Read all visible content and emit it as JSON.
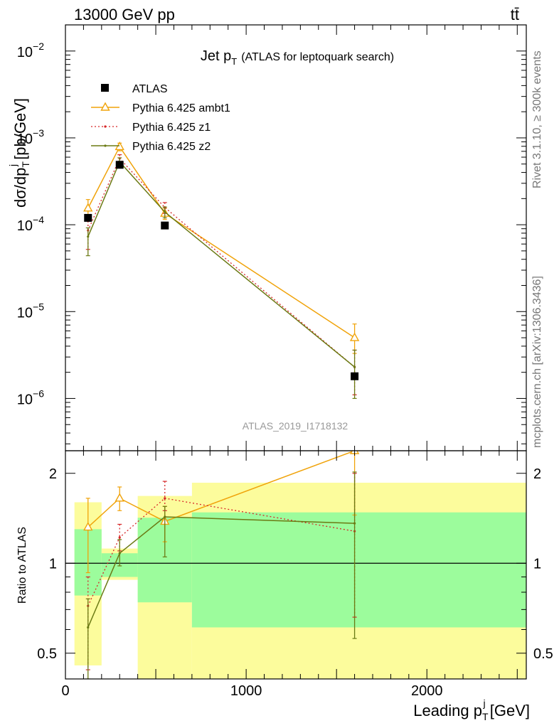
{
  "header": {
    "left": "13000 GeV pp",
    "right": "tt̄"
  },
  "side_labels": {
    "top": "Rivet 3.1.10, ≥ 300k events",
    "bottom": "mcplots.cern.ch [arXiv:1306.3436]"
  },
  "colors": {
    "data": "#000000",
    "ambt1": "#f0a30a",
    "z1": "#d62728",
    "z2": "#6b7a14",
    "band_inner": "#9cfc9c",
    "band_outer": "#fcfc9c",
    "watermark": "#999999"
  },
  "chart_data": [
    {
      "type": "line",
      "title": "Jet p_T (ATLAS for leptoquark search)",
      "title_main": "Jet p",
      "title_sub": "T",
      "title_note": "(ATLAS for leptoquark search)",
      "ylabel": "dσ/dp_T^j [pb/GeV]",
      "ylabel_parts": {
        "a": "dσ/dp",
        "sup": "j",
        "sub": "T",
        "b": " [pb/GeV]"
      },
      "y_scale": "log",
      "ylim": [
        2.5e-07,
        0.02
      ],
      "xlim": [
        0,
        2550
      ],
      "y_ticks": [
        {
          "value": 1e-06,
          "base": "10",
          "exp": "−6"
        },
        {
          "value": 1e-05,
          "base": "10",
          "exp": "−5"
        },
        {
          "value": 0.0001,
          "base": "10",
          "exp": "−4"
        },
        {
          "value": 0.001,
          "base": "10",
          "exp": "−3"
        },
        {
          "value": 0.01,
          "base": "10",
          "exp": "−2"
        }
      ],
      "watermark": "ATLAS_2019_I1718132",
      "legend_position": "top-left",
      "series": [
        {
          "name": "ATLAS",
          "style": "marker",
          "x": [
            125,
            300,
            550,
            1600
          ],
          "y": [
            0.00012,
            0.00049,
            9.8e-05,
            1.8e-06
          ]
        },
        {
          "name": "Pythia 6.425 ambt1",
          "style": "triangle-line",
          "x": [
            125,
            300,
            550,
            1600
          ],
          "y": [
            0.000155,
            0.00079,
            0.000135,
            5e-06
          ],
          "yerr_low": [
            0.000125,
            0.00071,
            0.000115,
            3.3e-06
          ],
          "yerr_high": [
            0.000195,
            0.00087,
            0.000155,
            7.2e-06
          ]
        },
        {
          "name": "Pythia 6.425 z1",
          "style": "dotted-line",
          "x": [
            125,
            300,
            550,
            1600
          ],
          "y": [
            8.6e-05,
            0.00058,
            0.000158,
            2.3e-06
          ],
          "yerr_low": [
            5.2e-05,
            0.00052,
            0.000135,
            1.1e-06
          ],
          "yerr_high": [
            0.00011,
            0.00064,
            0.00018,
            3.6e-06
          ]
        },
        {
          "name": "Pythia 6.425 z2",
          "style": "line",
          "x": [
            125,
            300,
            550,
            1600
          ],
          "y": [
            7.3e-05,
            0.00053,
            0.00014,
            2.3e-06
          ],
          "yerr_low": [
            4.4e-05,
            0.00047,
            0.00012,
            1e-06
          ],
          "yerr_high": [
            9.2e-05,
            0.00059,
            0.00016,
            3.6e-06
          ]
        }
      ]
    },
    {
      "type": "line",
      "ylabel": "Ratio to ATLAS",
      "xlabel": "Leading p_T^j [GeV]",
      "xlabel_parts": {
        "a": "Leading p",
        "sup": "j",
        "sub": "T",
        "b": " [GeV]"
      },
      "y_scale": "log",
      "ylim": [
        0.41,
        2.38
      ],
      "xlim": [
        0,
        2550
      ],
      "x_ticks": [
        0,
        1000,
        2000
      ],
      "y_ticks": [
        0.5,
        1,
        2
      ],
      "y_tick_labels": [
        "0.5",
        "1",
        "2"
      ],
      "bins": [
        {
          "x0": 50,
          "x1": 200,
          "inner": [
            0.78,
            1.3
          ],
          "outer": [
            0.455,
            1.6
          ]
        },
        {
          "x0": 200,
          "x1": 400,
          "inner": [
            0.9,
            1.08
          ],
          "outer": [
            0.88,
            1.12
          ]
        },
        {
          "x0": 400,
          "x1": 700,
          "inner": [
            0.74,
            1.42
          ],
          "outer": [
            0.41,
            1.68
          ]
        },
        {
          "x0": 700,
          "x1": 2550,
          "inner": [
            0.61,
            1.48
          ],
          "outer": [
            0.41,
            1.86
          ]
        }
      ],
      "series": [
        {
          "name": "Pythia 6.425 ambt1",
          "x": [
            125,
            300,
            550,
            1600
          ],
          "y": [
            1.32,
            1.65,
            1.38,
            2.78
          ],
          "yerr_low": [
            0.93,
            1.5,
            1.18,
            1.45
          ],
          "yerr_high": [
            1.65,
            1.8,
            1.55,
            4.0
          ]
        },
        {
          "name": "Pythia 6.425 z1",
          "x": [
            125,
            300,
            550,
            1600
          ],
          "y": [
            0.72,
            1.22,
            1.65,
            1.28
          ],
          "yerr_low": [
            0.44,
            1.1,
            1.5,
            0.66
          ],
          "yerr_high": [
            0.9,
            1.35,
            1.88,
            2.0
          ]
        },
        {
          "name": "Pythia 6.425 z2",
          "x": [
            125,
            300,
            550,
            1600
          ],
          "y": [
            0.61,
            1.08,
            1.43,
            1.36
          ],
          "yerr_low": [
            0.41,
            0.98,
            1.05,
            0.56
          ],
          "yerr_high": [
            0.76,
            1.2,
            1.55,
            2.02
          ]
        }
      ]
    }
  ]
}
